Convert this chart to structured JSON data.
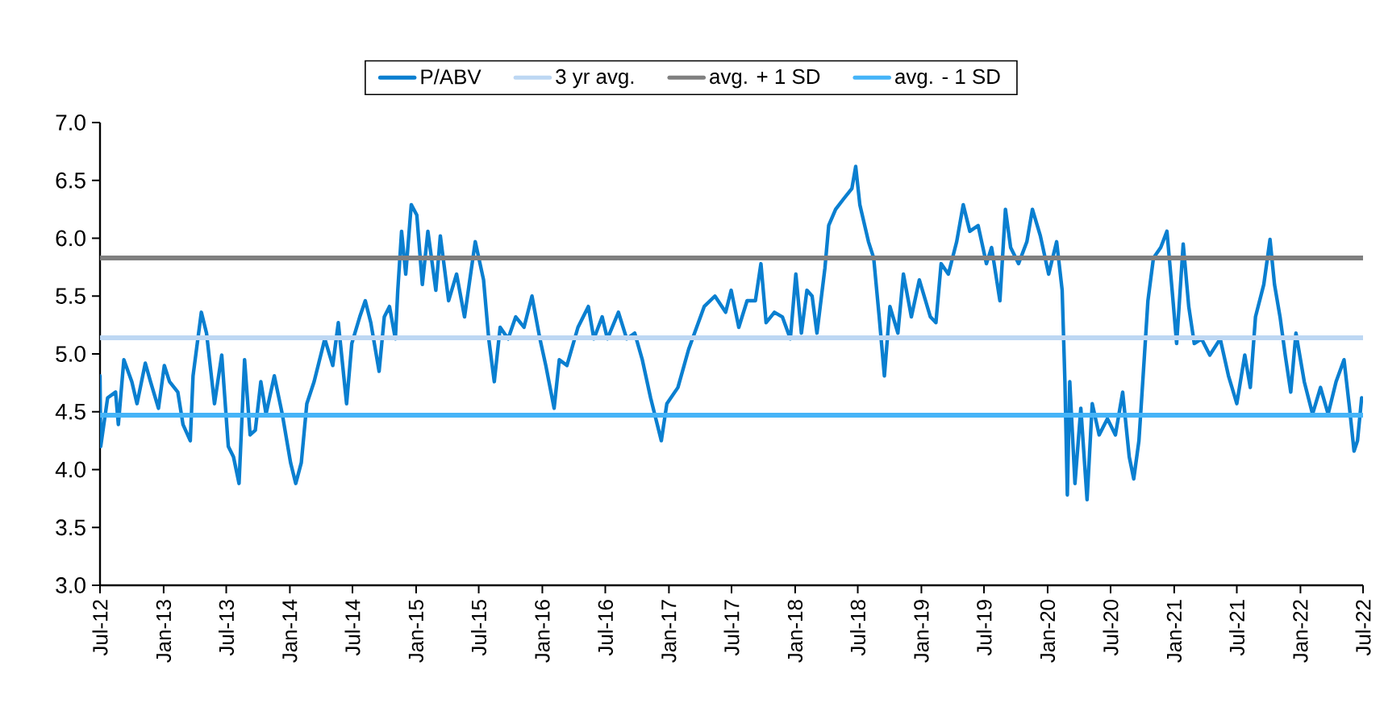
{
  "chart_data": {
    "type": "line",
    "legend": "top",
    "line_style": "solid",
    "xlim": [
      "2012-07-01",
      "2022-07-01"
    ],
    "xticks": [
      {
        "value": "2012-07-01",
        "label": "Jul-12"
      },
      {
        "value": "2013-01-01",
        "label": "Jan-13"
      },
      {
        "value": "2013-07-01",
        "label": "Jul-13"
      },
      {
        "value": "2014-01-01",
        "label": "Jan-14"
      },
      {
        "value": "2014-07-01",
        "label": "Jul-14"
      },
      {
        "value": "2015-01-01",
        "label": "Jan-15"
      },
      {
        "value": "2015-07-01",
        "label": "Jul-15"
      },
      {
        "value": "2016-01-01",
        "label": "Jan-16"
      },
      {
        "value": "2016-07-01",
        "label": "Jul-16"
      },
      {
        "value": "2017-01-01",
        "label": "Jan-17"
      },
      {
        "value": "2017-07-01",
        "label": "Jul-17"
      },
      {
        "value": "2018-01-01",
        "label": "Jan-18"
      },
      {
        "value": "2018-07-01",
        "label": "Jul-18"
      },
      {
        "value": "2019-01-01",
        "label": "Jan-19"
      },
      {
        "value": "2019-07-01",
        "label": "Jul-19"
      },
      {
        "value": "2020-01-01",
        "label": "Jan-20"
      },
      {
        "value": "2020-07-01",
        "label": "Jul-20"
      },
      {
        "value": "2021-01-01",
        "label": "Jan-21"
      },
      {
        "value": "2021-07-01",
        "label": "Jul-21"
      },
      {
        "value": "2022-01-01",
        "label": "Jan-22"
      },
      {
        "value": "2022-07-01",
        "label": "Jul-22"
      }
    ],
    "ylim": [
      3,
      7
    ],
    "yticks": [
      {
        "value": 3,
        "label": "3.0"
      },
      {
        "value": 3.5,
        "label": "3.5"
      },
      {
        "value": 4,
        "label": "4.0"
      },
      {
        "value": 4.5,
        "label": "4.5"
      },
      {
        "value": 5,
        "label": "5.0"
      },
      {
        "value": 5.5,
        "label": "5.5"
      },
      {
        "value": 6,
        "label": "6.0"
      },
      {
        "value": 6.5,
        "label": "6.5"
      },
      {
        "value": 7,
        "label": "7.0"
      }
    ],
    "series": [
      {
        "name": "P/ABV",
        "color": "#0a7fd0",
        "x": [
          "2012-07-01",
          "2012-07-03",
          "2012-07-23",
          "2012-08-15",
          "2012-08-23",
          "2012-09-08",
          "2012-10-01",
          "2012-10-16",
          "2012-11-09",
          "2012-11-24",
          "2012-12-17",
          "2013-01-03",
          "2013-01-18",
          "2013-02-11",
          "2013-02-26",
          "2013-03-19",
          "2013-03-27",
          "2013-04-20",
          "2013-05-05",
          "2013-05-28",
          "2013-06-18",
          "2013-07-07",
          "2013-07-22",
          "2013-08-07",
          "2013-08-23",
          "2013-09-08",
          "2013-09-23",
          "2013-10-09",
          "2013-10-24",
          "2013-11-17",
          "2013-12-10",
          "2014-01-03",
          "2014-01-18",
          "2014-02-03",
          "2014-02-19",
          "2014-03-12",
          "2014-04-12",
          "2014-05-05",
          "2014-05-21",
          "2014-06-14",
          "2014-06-29",
          "2014-07-22",
          "2014-08-07",
          "2014-08-23",
          "2014-09-16",
          "2014-10-01",
          "2014-10-16",
          "2014-11-02",
          "2014-11-09",
          "2014-11-20",
          "2014-12-02",
          "2014-12-18",
          "2015-01-03",
          "2015-01-19",
          "2015-02-04",
          "2015-02-27",
          "2015-03-12",
          "2015-04-05",
          "2015-04-28",
          "2015-05-21",
          "2015-06-21",
          "2015-07-15",
          "2015-07-30",
          "2015-08-15",
          "2015-09-01",
          "2015-09-24",
          "2015-10-16",
          "2015-11-09",
          "2015-12-02",
          "2015-12-25",
          "2016-01-11",
          "2016-02-04",
          "2016-02-19",
          "2016-03-12",
          "2016-04-13",
          "2016-05-13",
          "2016-05-29",
          "2016-06-22",
          "2016-07-07",
          "2016-08-08",
          "2016-09-01",
          "2016-09-24",
          "2016-10-16",
          "2016-11-09",
          "2016-12-10",
          "2016-12-26",
          "2017-01-27",
          "2017-02-27",
          "2017-04-13",
          "2017-05-14",
          "2017-06-14",
          "2017-06-30",
          "2017-07-22",
          "2017-08-15",
          "2017-09-08",
          "2017-09-24",
          "2017-10-09",
          "2017-11-02",
          "2017-11-25",
          "2017-12-18",
          "2018-01-03",
          "2018-01-19",
          "2018-02-04",
          "2018-02-19",
          "2018-03-05",
          "2018-03-28",
          "2018-04-08",
          "2018-04-28",
          "2018-05-21",
          "2018-06-14",
          "2018-06-25",
          "2018-07-07",
          "2018-08-01",
          "2018-08-16",
          "2018-09-01",
          "2018-09-16",
          "2018-10-02",
          "2018-10-25",
          "2018-11-10",
          "2018-12-03",
          "2018-12-26",
          "2019-01-27",
          "2019-02-12",
          "2019-02-27",
          "2019-03-20",
          "2019-04-13",
          "2019-05-02",
          "2019-05-21",
          "2019-06-14",
          "2019-07-08",
          "2019-07-23",
          "2019-08-16",
          "2019-09-01",
          "2019-09-16",
          "2019-10-09",
          "2019-11-02",
          "2019-11-18",
          "2019-12-11",
          "2020-01-04",
          "2020-01-27",
          "2020-02-12",
          "2020-02-20",
          "2020-02-27",
          "2020-03-05",
          "2020-03-20",
          "2020-04-06",
          "2020-04-24",
          "2020-05-09",
          "2020-05-29",
          "2020-06-22",
          "2020-07-15",
          "2020-08-05",
          "2020-08-24",
          "2020-09-06",
          "2020-09-21",
          "2020-10-07",
          "2020-10-17",
          "2020-11-02",
          "2020-11-23",
          "2020-12-11",
          "2020-12-26",
          "2021-01-08",
          "2021-01-27",
          "2021-02-12",
          "2021-02-28",
          "2021-03-21",
          "2021-04-14",
          "2021-05-14",
          "2021-06-07",
          "2021-07-01",
          "2021-07-24",
          "2021-08-09",
          "2021-08-24",
          "2021-09-17",
          "2021-10-05",
          "2021-10-18",
          "2021-11-03",
          "2021-11-18",
          "2021-12-04",
          "2021-12-19",
          "2022-01-12",
          "2022-02-05",
          "2022-02-28",
          "2022-03-22",
          "2022-04-14",
          "2022-05-07",
          "2022-05-23",
          "2022-06-05",
          "2022-06-15",
          "2022-06-27"
        ],
        "values": [
          4.81,
          4.2,
          4.62,
          4.67,
          4.39,
          4.95,
          4.76,
          4.57,
          4.92,
          4.76,
          4.53,
          4.9,
          4.76,
          4.67,
          4.39,
          4.25,
          4.81,
          5.36,
          5.18,
          4.57,
          4.99,
          4.2,
          4.11,
          3.88,
          4.95,
          4.3,
          4.34,
          4.76,
          4.48,
          4.81,
          4.48,
          4.06,
          3.88,
          4.06,
          4.57,
          4.76,
          5.13,
          4.9,
          5.27,
          4.57,
          5.09,
          5.32,
          5.46,
          5.27,
          4.85,
          5.32,
          5.41,
          5.13,
          5.55,
          6.06,
          5.69,
          6.29,
          6.2,
          5.6,
          6.06,
          5.55,
          6.02,
          5.46,
          5.69,
          5.32,
          5.97,
          5.64,
          5.13,
          4.76,
          5.23,
          5.13,
          5.32,
          5.23,
          5.5,
          5.13,
          4.9,
          4.53,
          4.95,
          4.9,
          5.23,
          5.41,
          5.13,
          5.32,
          5.13,
          5.36,
          5.13,
          5.18,
          4.95,
          4.62,
          4.25,
          4.57,
          4.71,
          5.04,
          5.41,
          5.5,
          5.36,
          5.55,
          5.23,
          5.46,
          5.46,
          5.78,
          5.27,
          5.36,
          5.32,
          5.13,
          5.69,
          5.18,
          5.55,
          5.5,
          5.18,
          5.74,
          6.11,
          6.25,
          6.34,
          6.43,
          6.62,
          6.29,
          5.97,
          5.83,
          5.32,
          4.81,
          5.41,
          5.18,
          5.69,
          5.32,
          5.64,
          5.32,
          5.27,
          5.78,
          5.69,
          5.97,
          6.29,
          6.06,
          6.11,
          5.78,
          5.92,
          5.46,
          6.25,
          5.92,
          5.78,
          5.97,
          6.25,
          6.02,
          5.69,
          5.97,
          5.55,
          4.76,
          3.78,
          4.76,
          3.88,
          4.53,
          3.74,
          4.57,
          4.3,
          4.44,
          4.3,
          4.67,
          4.11,
          3.92,
          4.25,
          4.99,
          5.46,
          5.83,
          5.92,
          6.06,
          5.55,
          5.09,
          5.95,
          5.41,
          5.09,
          5.13,
          4.99,
          5.13,
          4.81,
          4.57,
          4.99,
          4.71,
          5.32,
          5.6,
          5.99,
          5.6,
          5.32,
          4.99,
          4.67,
          5.18,
          4.76,
          4.48,
          4.71,
          4.48,
          4.76,
          4.95,
          4.53,
          4.16,
          4.25,
          4.62
        ]
      },
      {
        "name": "3 yr avg.",
        "color": "#bdd7f3",
        "x": [
          "2012-07-01",
          "2022-07-01"
        ],
        "values": [
          5.14,
          5.14
        ]
      },
      {
        "name": "avg. + 1 SD",
        "color": "#808080",
        "x": [
          "2012-07-01",
          "2022-07-01"
        ],
        "values": [
          5.83,
          5.83
        ]
      },
      {
        "name": "avg. - 1 SD",
        "color": "#45b4f8",
        "x": [
          "2012-07-01",
          "2022-07-01"
        ],
        "values": [
          4.47,
          4.47
        ]
      }
    ]
  }
}
